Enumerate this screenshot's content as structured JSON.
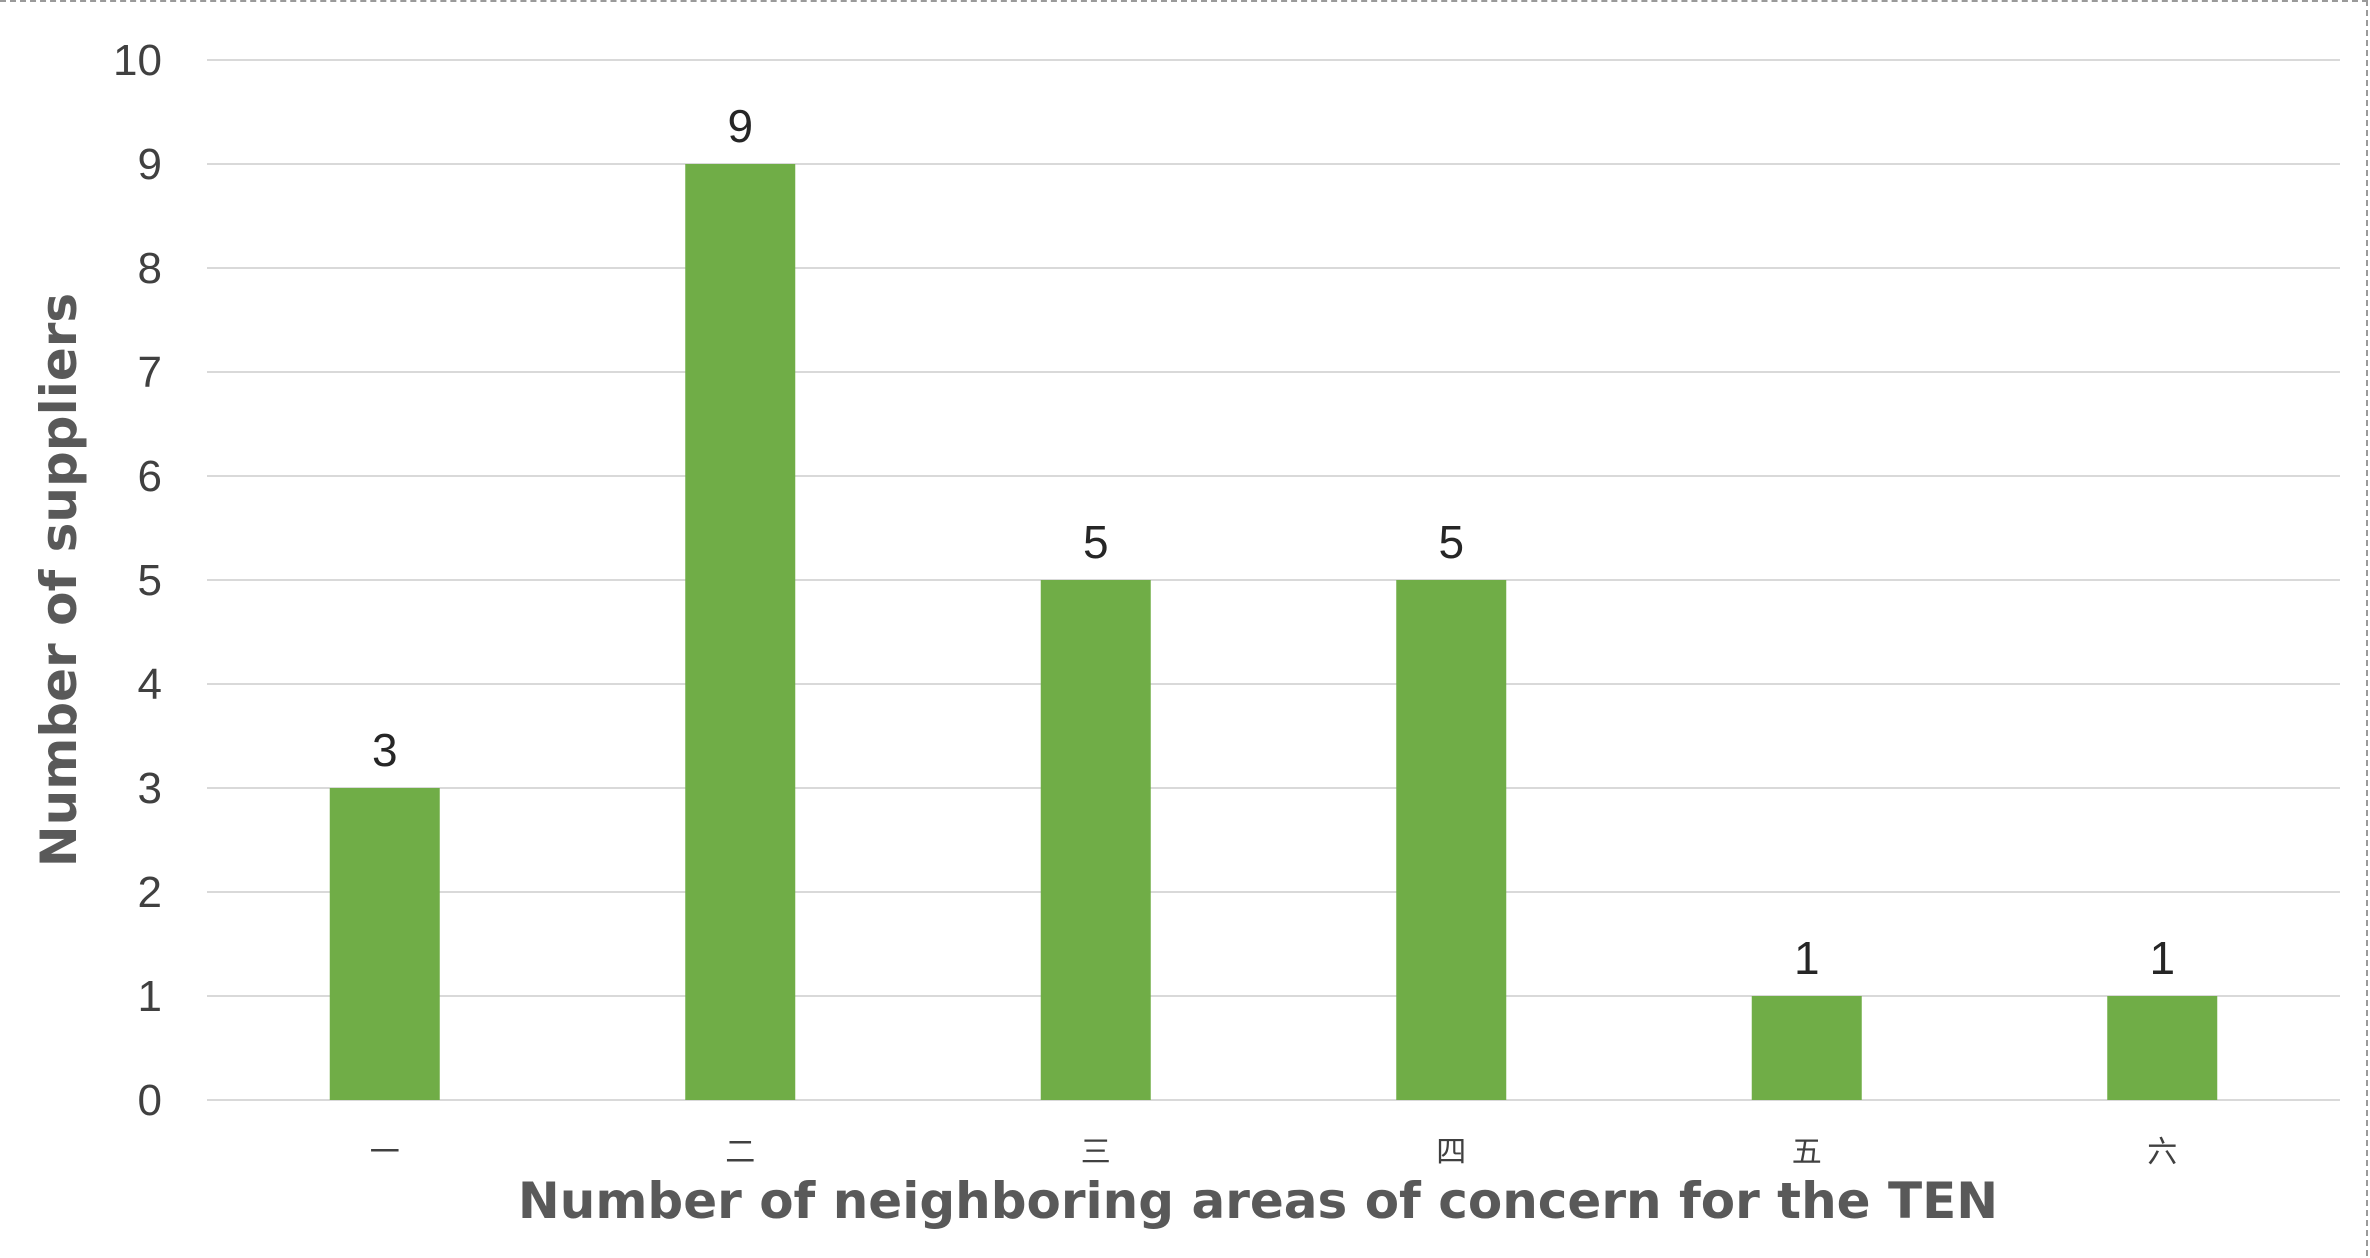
{
  "chart_data": {
    "type": "bar",
    "categories": [
      "一",
      "二",
      "三",
      "四",
      "五",
      "六"
    ],
    "values": [
      3,
      9,
      5,
      5,
      1,
      1
    ],
    "data_labels": [
      "3",
      "9",
      "5",
      "5",
      "1",
      "1"
    ],
    "xlabel": "Number of neighboring areas of concern for the TEN",
    "ylabel": "Number of suppliers",
    "ylim": [
      0,
      10
    ],
    "yticks": [
      0,
      1,
      2,
      3,
      4,
      5,
      6,
      7,
      8,
      9,
      10
    ],
    "grid": true,
    "legend": "none",
    "colors": {
      "bar": "#70AD47",
      "grid": "#D9D9D9",
      "axis_text": "#404040",
      "axis_title": "#595959"
    }
  }
}
